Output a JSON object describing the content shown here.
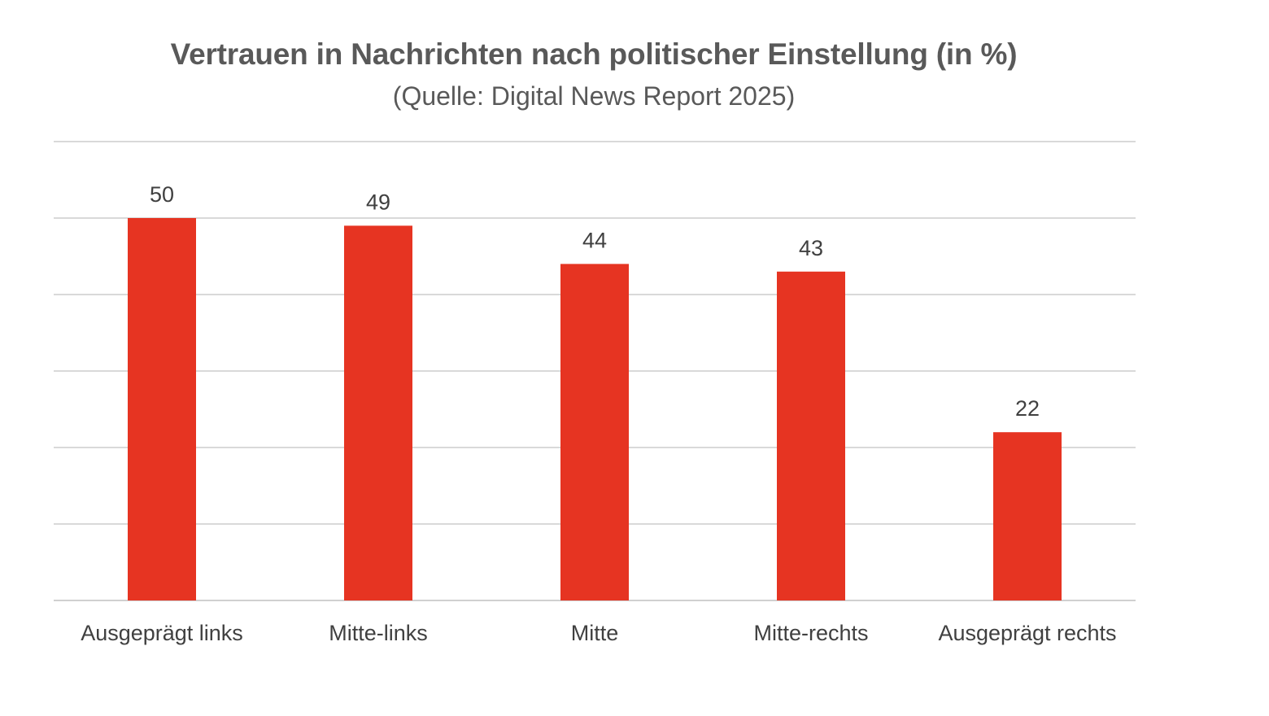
{
  "chart_data": {
    "type": "bar",
    "title": "Vertrauen in Nachrichten nach politischer Einstellung (in %)",
    "subtitle": "(Quelle: Digital News Report 2025)",
    "categories": [
      "Ausgeprägt links",
      "Mitte-links",
      "Mitte",
      "Mitte-rechts",
      "Ausgeprägt rechts"
    ],
    "values": [
      50,
      49,
      44,
      43,
      22
    ],
    "ylim": [
      0,
      60
    ],
    "gridlines": [
      0,
      10,
      20,
      30,
      40,
      50,
      60
    ],
    "grid": true,
    "legend": "none",
    "bar_color": "#e63422"
  }
}
